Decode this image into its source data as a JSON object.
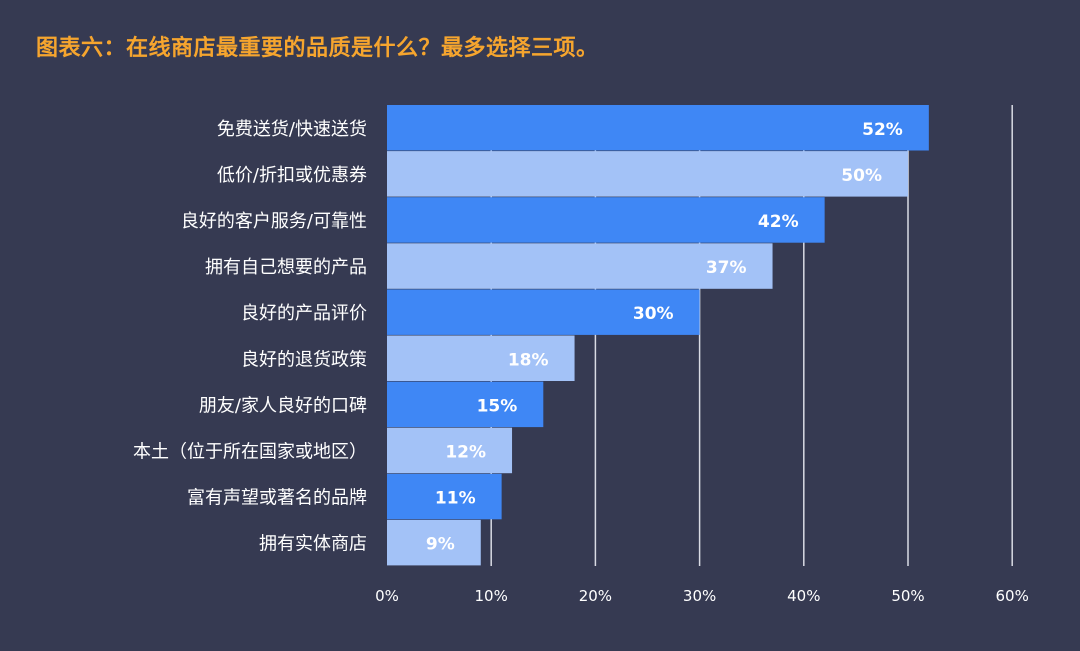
{
  "title": "图表六：在线商店最重要的品质是什么？最多选择三项。",
  "chart_data": {
    "type": "bar",
    "orientation": "horizontal",
    "title": "图表六：在线商店最重要的品质是什么？最多选择三项。",
    "categories": [
      "免费送货/快速送货",
      "低价/折扣或优惠券",
      "良好的客户服务/可靠性",
      "拥有自己想要的产品",
      "良好的产品评价",
      "良好的退货政策",
      "朋友/家人良好的口碑",
      "本土（位于所在国家或地区）",
      "富有声望或著名的品牌",
      "拥有实体商店"
    ],
    "values": [
      52,
      50,
      42,
      37,
      30,
      18,
      15,
      12,
      11,
      9
    ],
    "value_labels": [
      "52%",
      "50%",
      "42%",
      "37%",
      "30%",
      "18%",
      "15%",
      "12%",
      "11%",
      "9%"
    ],
    "xlim": [
      0,
      60
    ],
    "x_ticks": [
      0,
      10,
      20,
      30,
      40,
      50,
      60
    ],
    "x_tick_labels": [
      "0%",
      "10%",
      "20%",
      "30%",
      "40%",
      "50%",
      "60%"
    ],
    "grid": "vertical",
    "colors": [
      "#3f87f5",
      "#a3c2f7"
    ]
  }
}
